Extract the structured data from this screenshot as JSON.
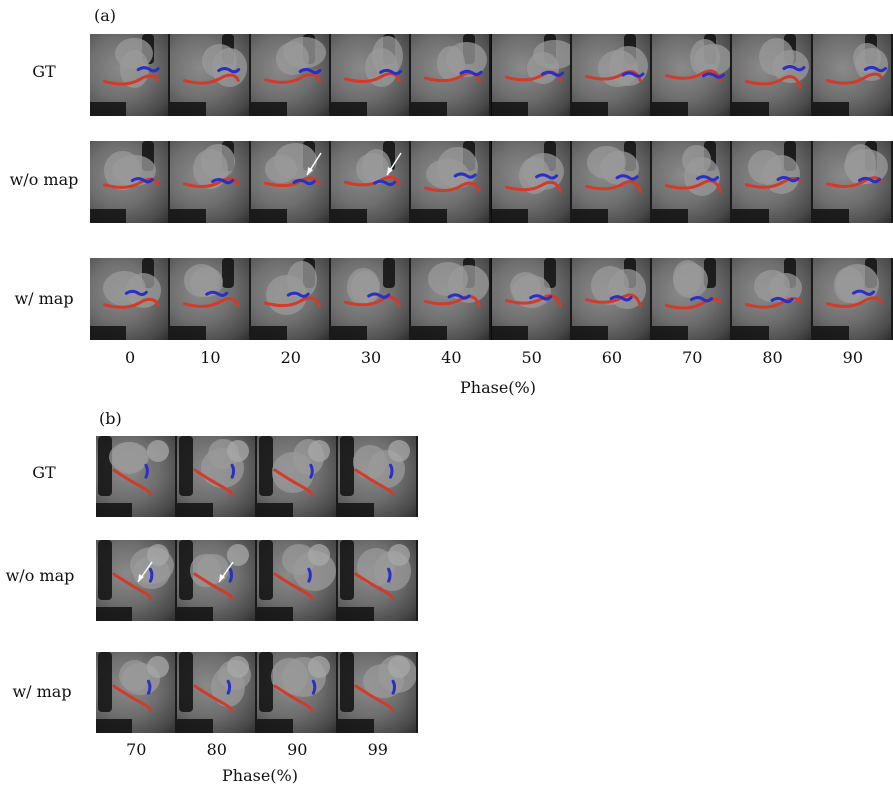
{
  "panel_a": {
    "label": "(a)",
    "rows": [
      "GT",
      "w/o map",
      "w/ map"
    ],
    "phases": [
      "0",
      "10",
      "20",
      "30",
      "40",
      "50",
      "60",
      "70",
      "80",
      "90"
    ],
    "axis_title": "Phase(%)"
  },
  "panel_b": {
    "label": "(b)",
    "rows": [
      "GT",
      "w/o map",
      "w/ map"
    ],
    "phases": [
      "70",
      "80",
      "90",
      "99"
    ],
    "axis_title": "Phase(%)"
  },
  "colors": {
    "vessel_red": "#d23a2a",
    "vessel_blue": "#2a2fc8",
    "arrow": "#ffffff"
  },
  "arrows": {
    "a_wo_map_phases": [
      "20",
      "30"
    ],
    "b_wo_map_phases": [
      "70",
      "80"
    ]
  }
}
